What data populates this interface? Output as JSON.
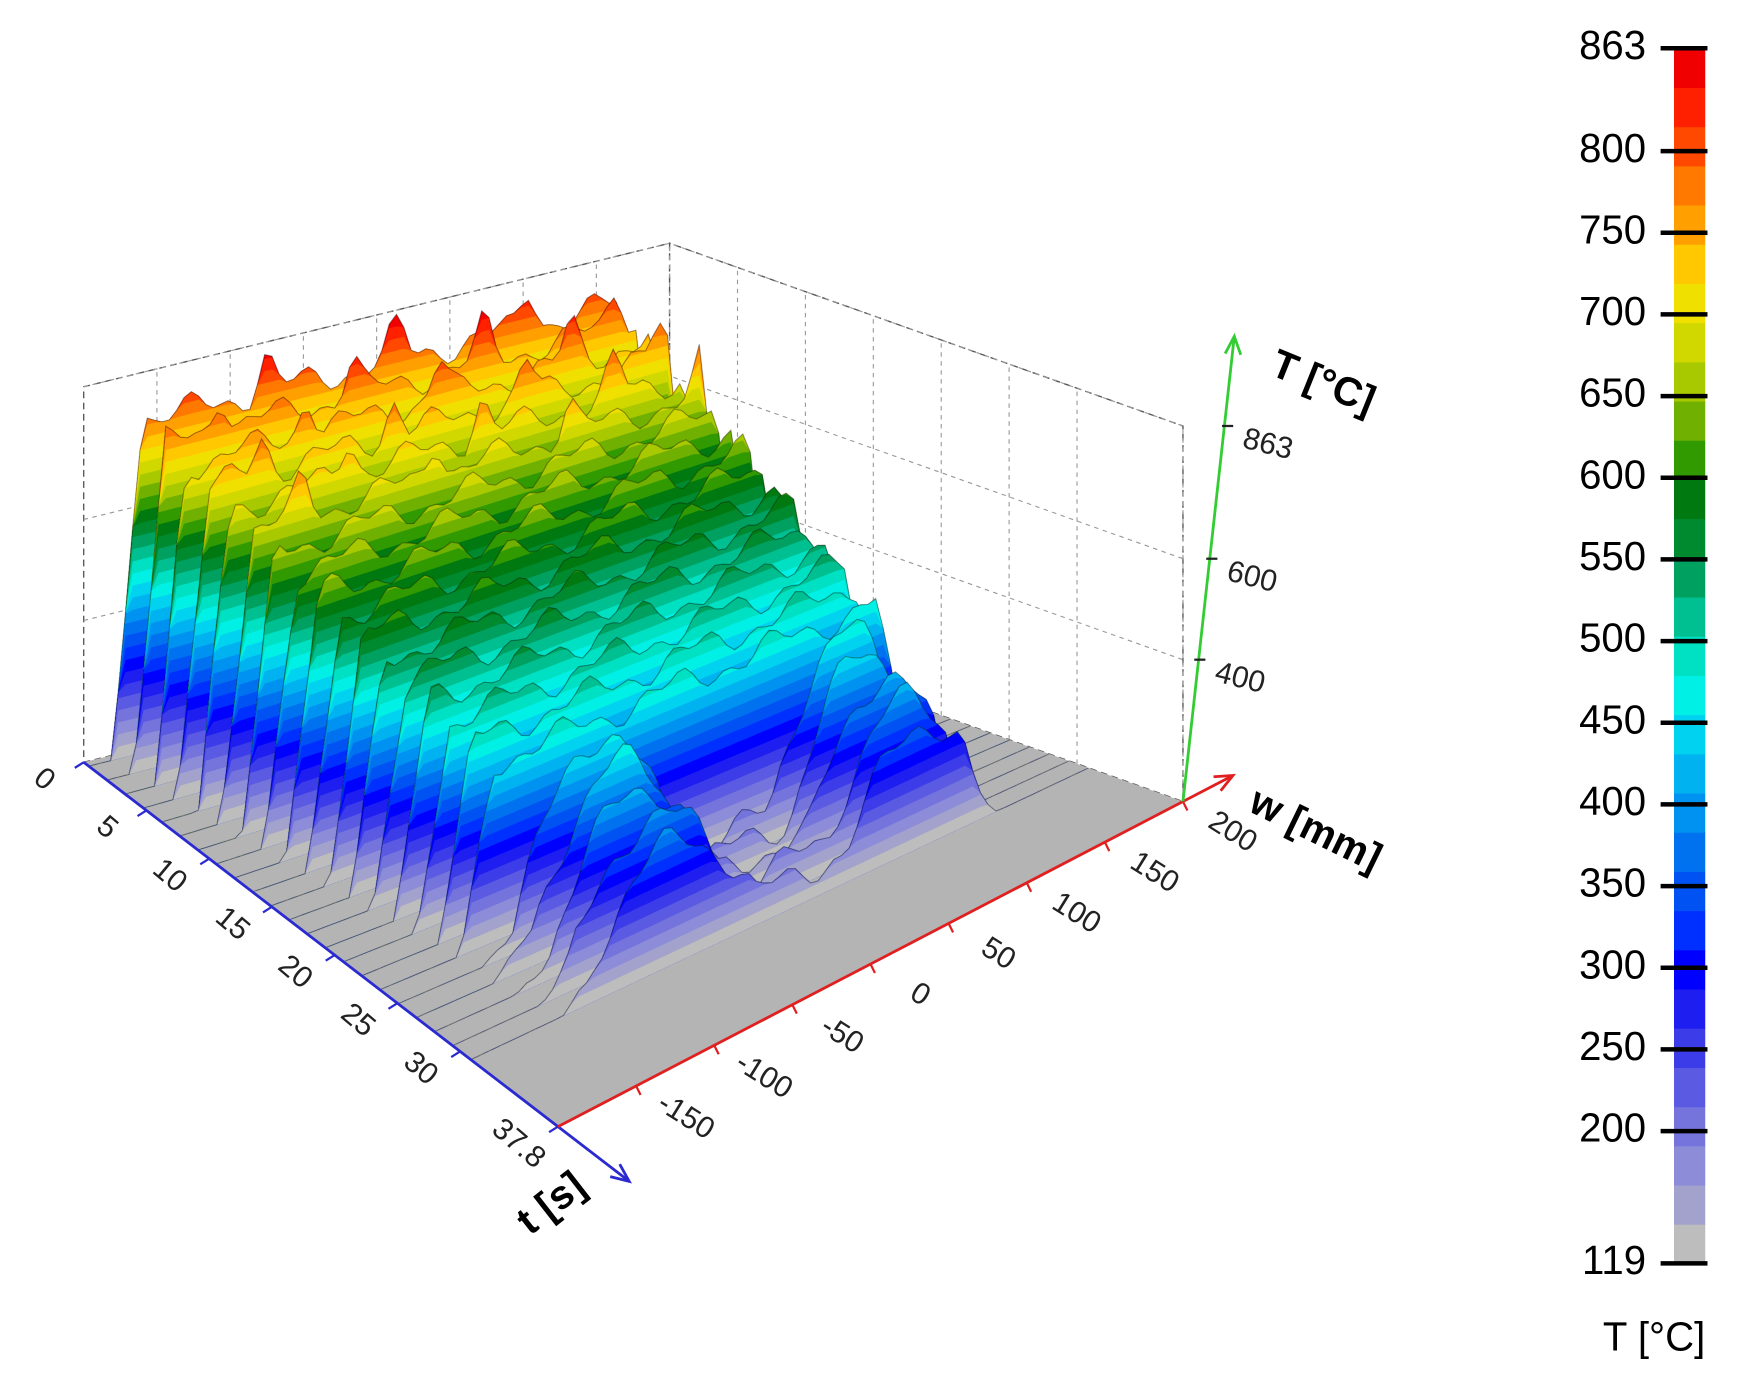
{
  "chart_data": {
    "type": "surface3d",
    "t_label": "t [s]",
    "tlim": [
      0,
      37.8
    ],
    "tticks": [
      0,
      5,
      10,
      15,
      20,
      25,
      30,
      37.8
    ],
    "w_label": "w [mm]",
    "wlim": [
      -200,
      200
    ],
    "wticks": [
      -150,
      -100,
      -50,
      0,
      50,
      100,
      150,
      200
    ],
    "z_label": "T [°C]",
    "zlim": [
      119,
      863
    ],
    "zticks": [
      400,
      600,
      863
    ],
    "grid": true,
    "colorbar": {
      "label": "T [°C]",
      "clim": [
        119,
        863
      ],
      "cticks": [
        119,
        200,
        250,
        300,
        350,
        400,
        450,
        500,
        550,
        600,
        650,
        700,
        750,
        800,
        863
      ],
      "colors": [
        "#bdbdbd",
        "#a2a2cc",
        "#8c8cd8",
        "#7474dc",
        "#5a5ae2",
        "#3c3ce8",
        "#1e1ef0",
        "#0000ff",
        "#0030ff",
        "#0052f2",
        "#0072f0",
        "#0092f0",
        "#00b2f0",
        "#00d2f0",
        "#00f0e6",
        "#00e0c2",
        "#00c092",
        "#00a060",
        "#008a30",
        "#007a10",
        "#309a00",
        "#70b000",
        "#a8c800",
        "#d0d800",
        "#f0e000",
        "#ffc800",
        "#ffa000",
        "#ff7800",
        "#ff4800",
        "#ff2000",
        "#f00000"
      ]
    }
  }
}
